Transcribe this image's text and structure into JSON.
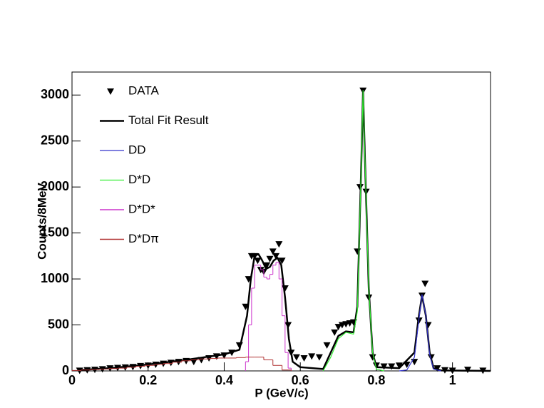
{
  "chart_data": {
    "type": "line",
    "x_label": "P (GeV/c)",
    "y_label": "Counts/8MeV",
    "xlim": [
      0,
      1.1
    ],
    "ylim": [
      0,
      3250
    ],
    "xticks": [
      0,
      0.2,
      0.4,
      0.6,
      0.8,
      1
    ],
    "yticks": [
      0,
      500,
      1000,
      1500,
      2000,
      2500,
      3000
    ],
    "legend": "top-left",
    "series": [
      {
        "name": "DATA",
        "color": "#000000",
        "mode": "markers",
        "x": [
          0.02,
          0.04,
          0.06,
          0.08,
          0.1,
          0.12,
          0.14,
          0.16,
          0.18,
          0.2,
          0.22,
          0.24,
          0.26,
          0.28,
          0.3,
          0.32,
          0.34,
          0.36,
          0.38,
          0.4,
          0.42,
          0.44,
          0.456,
          0.464,
          0.472,
          0.48,
          0.488,
          0.496,
          0.504,
          0.512,
          0.52,
          0.528,
          0.536,
          0.544,
          0.552,
          0.56,
          0.568,
          0.576,
          0.59,
          0.61,
          0.63,
          0.65,
          0.67,
          0.69,
          0.7,
          0.71,
          0.72,
          0.73,
          0.74,
          0.75,
          0.757,
          0.765,
          0.773,
          0.78,
          0.79,
          0.8,
          0.82,
          0.84,
          0.86,
          0.88,
          0.9,
          0.912,
          0.92,
          0.928,
          0.936,
          0.944,
          0.96,
          0.98,
          1.0,
          1.04,
          1.08
        ],
        "values": [
          5,
          10,
          15,
          20,
          30,
          35,
          40,
          45,
          55,
          60,
          70,
          80,
          90,
          100,
          110,
          100,
          120,
          140,
          160,
          170,
          200,
          280,
          700,
          1000,
          1250,
          1250,
          1200,
          1100,
          1080,
          1150,
          1220,
          1300,
          1250,
          1380,
          1200,
          900,
          500,
          200,
          150,
          140,
          160,
          150,
          280,
          420,
          480,
          500,
          510,
          520,
          530,
          1300,
          2000,
          3050,
          1950,
          800,
          150,
          60,
          50,
          50,
          60,
          70,
          100,
          550,
          820,
          950,
          500,
          150,
          30,
          10,
          5,
          15,
          5
        ]
      },
      {
        "name": "Total Fit Result",
        "color": "#000000",
        "mode": "line",
        "width": 2.5,
        "x": [
          0.02,
          0.1,
          0.2,
          0.3,
          0.4,
          0.44,
          0.46,
          0.47,
          0.48,
          0.49,
          0.5,
          0.51,
          0.52,
          0.53,
          0.54,
          0.55,
          0.56,
          0.57,
          0.58,
          0.6,
          0.66,
          0.68,
          0.7,
          0.72,
          0.74,
          0.75,
          0.76,
          0.765,
          0.77,
          0.78,
          0.79,
          0.8,
          0.86,
          0.9,
          0.91,
          0.92,
          0.93,
          0.94,
          0.95,
          0.97,
          1.1
        ],
        "values": [
          10,
          30,
          70,
          120,
          180,
          230,
          600,
          1000,
          1250,
          1270,
          1200,
          1110,
          1130,
          1200,
          1230,
          1150,
          800,
          350,
          100,
          40,
          20,
          200,
          380,
          430,
          420,
          700,
          2200,
          3050,
          2300,
          900,
          200,
          40,
          30,
          200,
          550,
          820,
          600,
          200,
          30,
          5,
          0
        ]
      },
      {
        "name": "DD",
        "color": "#3333cc",
        "mode": "line",
        "width": 1.2,
        "x": [
          0.86,
          0.88,
          0.9,
          0.91,
          0.92,
          0.93,
          0.94,
          0.95,
          0.97
        ],
        "values": [
          0,
          10,
          150,
          500,
          830,
          600,
          180,
          20,
          0
        ]
      },
      {
        "name": "D*D",
        "color": "#33ee33",
        "mode": "line",
        "width": 1.2,
        "x": [
          0.66,
          0.68,
          0.7,
          0.72,
          0.74,
          0.75,
          0.76,
          0.765,
          0.77,
          0.78,
          0.79,
          0.8,
          0.82
        ],
        "values": [
          0,
          150,
          350,
          420,
          400,
          650,
          2200,
          3050,
          2300,
          900,
          200,
          20,
          0
        ]
      },
      {
        "name": "D*D*",
        "color": "#cc33cc",
        "mode": "step",
        "bins": [
          0.456,
          0.464,
          0.472,
          0.48,
          0.488,
          0.496,
          0.504,
          0.512,
          0.52,
          0.528,
          0.536,
          0.544,
          0.552,
          0.56,
          0.568,
          0.576
        ],
        "values": [
          100,
          500,
          900,
          1150,
          1150,
          1100,
          1020,
          1000,
          1050,
          1150,
          1180,
          1000,
          600,
          200,
          30
        ]
      },
      {
        "name": "D*Dπ",
        "color": "#b03030",
        "mode": "step",
        "bins": [
          0,
          0.024,
          0.048,
          0.072,
          0.096,
          0.12,
          0.144,
          0.168,
          0.192,
          0.216,
          0.24,
          0.264,
          0.288,
          0.312,
          0.336,
          0.36,
          0.384,
          0.408,
          0.432,
          0.456,
          0.48,
          0.504,
          0.528,
          0.552,
          0.576
        ],
        "values": [
          5,
          10,
          15,
          20,
          25,
          30,
          40,
          50,
          60,
          70,
          80,
          95,
          110,
          120,
          130,
          135,
          140,
          140,
          145,
          150,
          150,
          120,
          60,
          10
        ]
      }
    ]
  }
}
